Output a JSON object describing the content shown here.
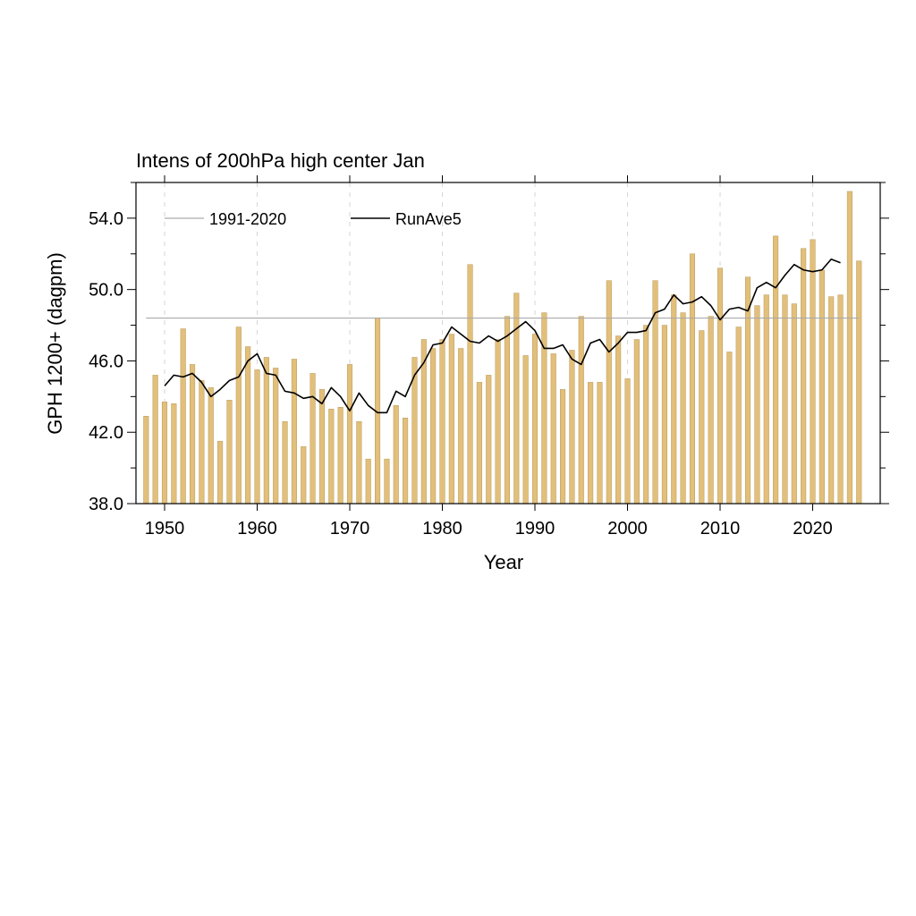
{
  "chart_data": {
    "type": "bar",
    "title": "Intens of 200hPa high center Jan",
    "xlabel": "Year",
    "ylabel": "GPH 1200+ (dagpm)",
    "xlim": [
      1946.5,
      1926.5
    ],
    "ylim": [
      38.0,
      56.0
    ],
    "x_ticks": [
      "1950",
      "1960",
      "1970",
      "1980",
      "1990",
      "2000",
      "2010",
      "2020"
    ],
    "y_ticks": [
      "38.0",
      "42.0",
      "46.0",
      "50.0",
      "54.0"
    ],
    "grid": "vertical dashed at decades",
    "bar_color": "#e2bf7a",
    "bar_edge_color": "#b89a5a",
    "legend_position": "top-left",
    "years": [
      1948,
      1949,
      1950,
      1951,
      1952,
      1953,
      1954,
      1955,
      1956,
      1957,
      1958,
      1959,
      1960,
      1961,
      1962,
      1963,
      1964,
      1965,
      1966,
      1967,
      1968,
      1969,
      1970,
      1971,
      1972,
      1973,
      1974,
      1975,
      1976,
      1977,
      1978,
      1979,
      1980,
      1981,
      1982,
      1983,
      1984,
      1985,
      1986,
      1987,
      1988,
      1989,
      1990,
      1991,
      1992,
      1993,
      1994,
      1995,
      1996,
      1997,
      1998,
      1999,
      2000,
      2001,
      2002,
      2003,
      2004,
      2005,
      2006,
      2007,
      2008,
      2009,
      2010,
      2011,
      2012,
      2013,
      2014,
      2015,
      2016,
      2017,
      2018,
      2019,
      2020,
      2021,
      2022,
      2023,
      2024,
      2025
    ],
    "values": [
      42.9,
      45.2,
      43.7,
      43.6,
      47.8,
      45.8,
      44.9,
      44.5,
      41.5,
      43.8,
      47.9,
      46.8,
      45.5,
      46.2,
      45.6,
      42.6,
      46.1,
      41.2,
      45.3,
      44.4,
      43.3,
      43.4,
      45.8,
      42.6,
      40.5,
      48.4,
      40.5,
      43.5,
      42.8,
      46.2,
      47.2,
      46.7,
      47.2,
      47.5,
      46.7,
      51.4,
      44.8,
      45.2,
      47.2,
      48.5,
      49.8,
      46.3,
      47.5,
      48.7,
      46.4,
      44.4,
      46.6,
      48.5,
      44.8,
      44.8,
      50.5,
      47.4,
      45.0,
      47.2,
      48.0,
      50.5,
      48.0,
      49.7,
      48.7,
      52.0,
      47.7,
      48.5,
      51.2,
      46.5,
      47.9,
      50.7,
      49.1,
      49.7,
      53.0,
      49.7,
      49.2,
      52.3,
      52.8,
      51.1,
      49.6,
      49.7,
      55.5,
      51.6
    ],
    "series": [
      {
        "name": "1991-2020",
        "type": "hline",
        "value": 48.4,
        "color": "#aaaaaa"
      },
      {
        "name": "RunAve5",
        "type": "line",
        "color": "#000000",
        "x": [
          1950,
          1951,
          1952,
          1953,
          1954,
          1955,
          1956,
          1957,
          1958,
          1959,
          1960,
          1961,
          1962,
          1963,
          1964,
          1965,
          1966,
          1967,
          1968,
          1969,
          1970,
          1971,
          1972,
          1973,
          1974,
          1975,
          1976,
          1977,
          1978,
          1979,
          1980,
          1981,
          1982,
          1983,
          1984,
          1985,
          1986,
          1987,
          1988,
          1989,
          1990,
          1991,
          1992,
          1993,
          1994,
          1995,
          1996,
          1997,
          1998,
          1999,
          2000,
          2001,
          2002,
          2003,
          2004,
          2005,
          2006,
          2007,
          2008,
          2009,
          2010,
          2011,
          2012,
          2013,
          2014,
          2015,
          2016,
          2017,
          2018,
          2019,
          2020,
          2021,
          2022,
          2023
        ],
        "values": [
          44.6,
          45.2,
          45.1,
          45.3,
          44.8,
          44.0,
          44.4,
          44.9,
          45.1,
          46.0,
          46.4,
          45.3,
          45.2,
          44.3,
          44.2,
          43.9,
          44.0,
          43.6,
          44.5,
          44.0,
          43.2,
          44.2,
          43.5,
          43.1,
          43.1,
          44.3,
          44.0,
          45.2,
          45.9,
          46.9,
          47.0,
          47.9,
          47.5,
          47.1,
          47.0,
          47.4,
          47.1,
          47.4,
          47.8,
          48.2,
          47.7,
          46.7,
          46.7,
          46.9,
          46.1,
          45.8,
          47.0,
          47.2,
          46.5,
          47.0,
          47.6,
          47.6,
          47.7,
          48.7,
          48.9,
          49.7,
          49.2,
          49.3,
          49.6,
          49.1,
          48.3,
          48.9,
          49.0,
          48.8,
          50.1,
          50.4,
          50.1,
          50.8,
          51.4,
          51.1,
          51.0,
          51.1,
          51.7,
          51.5
        ]
      }
    ]
  }
}
